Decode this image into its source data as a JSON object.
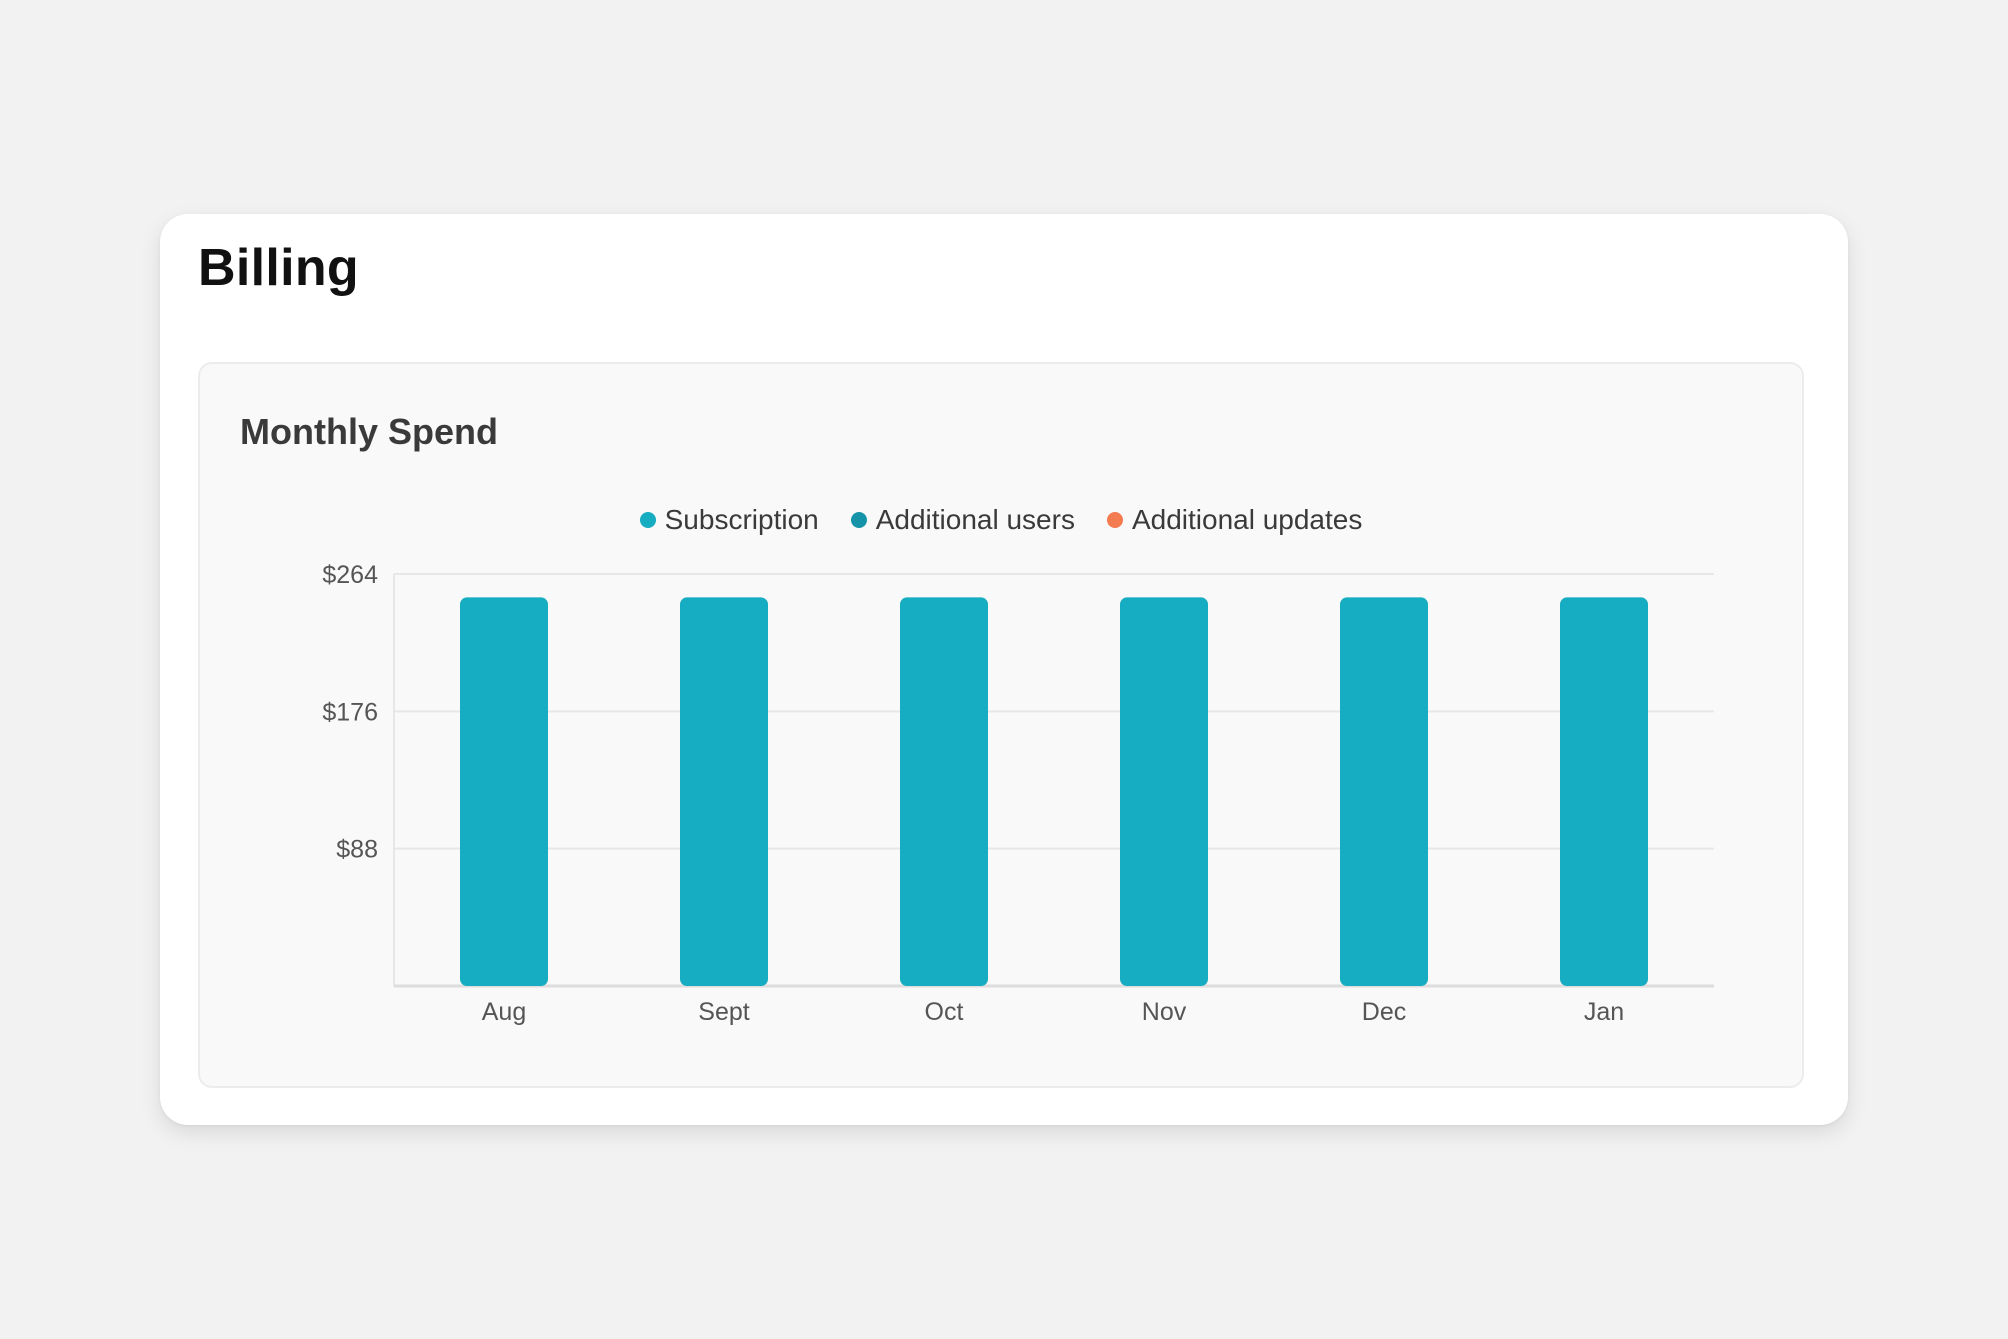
{
  "page": {
    "title": "Billing"
  },
  "panel": {
    "title": "Monthly Spend"
  },
  "colors": {
    "subscription": "#16acc2",
    "additional_users": "#1594a8",
    "additional_updates": "#f47a50",
    "gridline": "#e7e7e7",
    "axis": "#dddddd"
  },
  "chart_data": {
    "type": "bar",
    "stacked": true,
    "title": "Monthly Spend",
    "xlabel": "",
    "ylabel": "",
    "categories": [
      "Aug",
      "Sept",
      "Oct",
      "Nov",
      "Dec",
      "Jan"
    ],
    "series": [
      {
        "name": "Subscription",
        "values": [
          249,
          249,
          249,
          249,
          249,
          249
        ]
      },
      {
        "name": "Additional users",
        "values": [
          0,
          0,
          0,
          0,
          0,
          0
        ]
      },
      {
        "name": "Additional updates",
        "values": [
          0,
          0,
          0,
          0,
          0,
          0
        ]
      }
    ],
    "yticks": [
      88,
      176,
      264
    ],
    "ytick_labels": [
      "$88",
      "$176",
      "$264"
    ],
    "ylim": [
      0,
      264
    ],
    "grid": true,
    "legend_position": "top-center"
  }
}
